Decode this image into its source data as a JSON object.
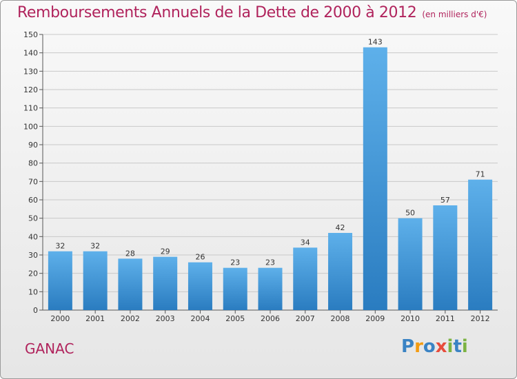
{
  "title": "Remboursements Annuels de la Dette de 2000 à 2012",
  "unit": "(en milliers d'€)",
  "commune": "GANAC",
  "logo": {
    "letters": [
      "P",
      "r",
      "o",
      "x",
      "i",
      "t",
      "i"
    ],
    "colors": [
      "#3a83c4",
      "#f39c12",
      "#3a83c4",
      "#e74c3c",
      "#7cb342",
      "#3a83c4",
      "#7cb342"
    ]
  },
  "colors": {
    "title": "#b0235c",
    "bar_top": "#5eb0ea",
    "bar_bottom": "#2a7cc0",
    "grid": "#c8c8c8"
  },
  "chart_data": {
    "type": "bar",
    "title": "Remboursements Annuels de la Dette de 2000 à 2012",
    "xlabel": "",
    "ylabel": "",
    "categories": [
      "2000",
      "2001",
      "2002",
      "2003",
      "2004",
      "2005",
      "2006",
      "2007",
      "2008",
      "2009",
      "2010",
      "2011",
      "2012"
    ],
    "values": [
      32,
      32,
      28,
      29,
      26,
      23,
      23,
      34,
      42,
      143,
      50,
      57,
      71
    ],
    "ylim": [
      0,
      150
    ],
    "yticks": [
      0,
      10,
      20,
      30,
      40,
      50,
      60,
      70,
      80,
      90,
      100,
      110,
      120,
      130,
      140,
      150
    ],
    "grid": true,
    "data_labels": true
  }
}
